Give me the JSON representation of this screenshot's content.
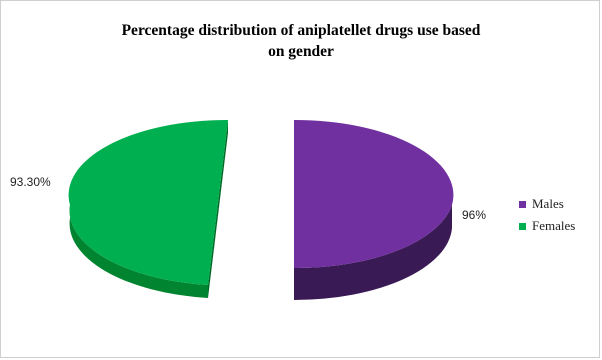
{
  "chart_data": {
    "type": "pie",
    "style": "3d-exploded",
    "title_line1": "Percentage distribution  of aniplatellet  drugs use based",
    "title_line2": "on gender",
    "series": [
      {
        "name": "Males",
        "value": 96,
        "label": "96%",
        "color": "#7030a0"
      },
      {
        "name": "Females",
        "value": 93.3,
        "label": "93.30%",
        "color": "#00b050"
      }
    ],
    "legend_position": "right"
  }
}
